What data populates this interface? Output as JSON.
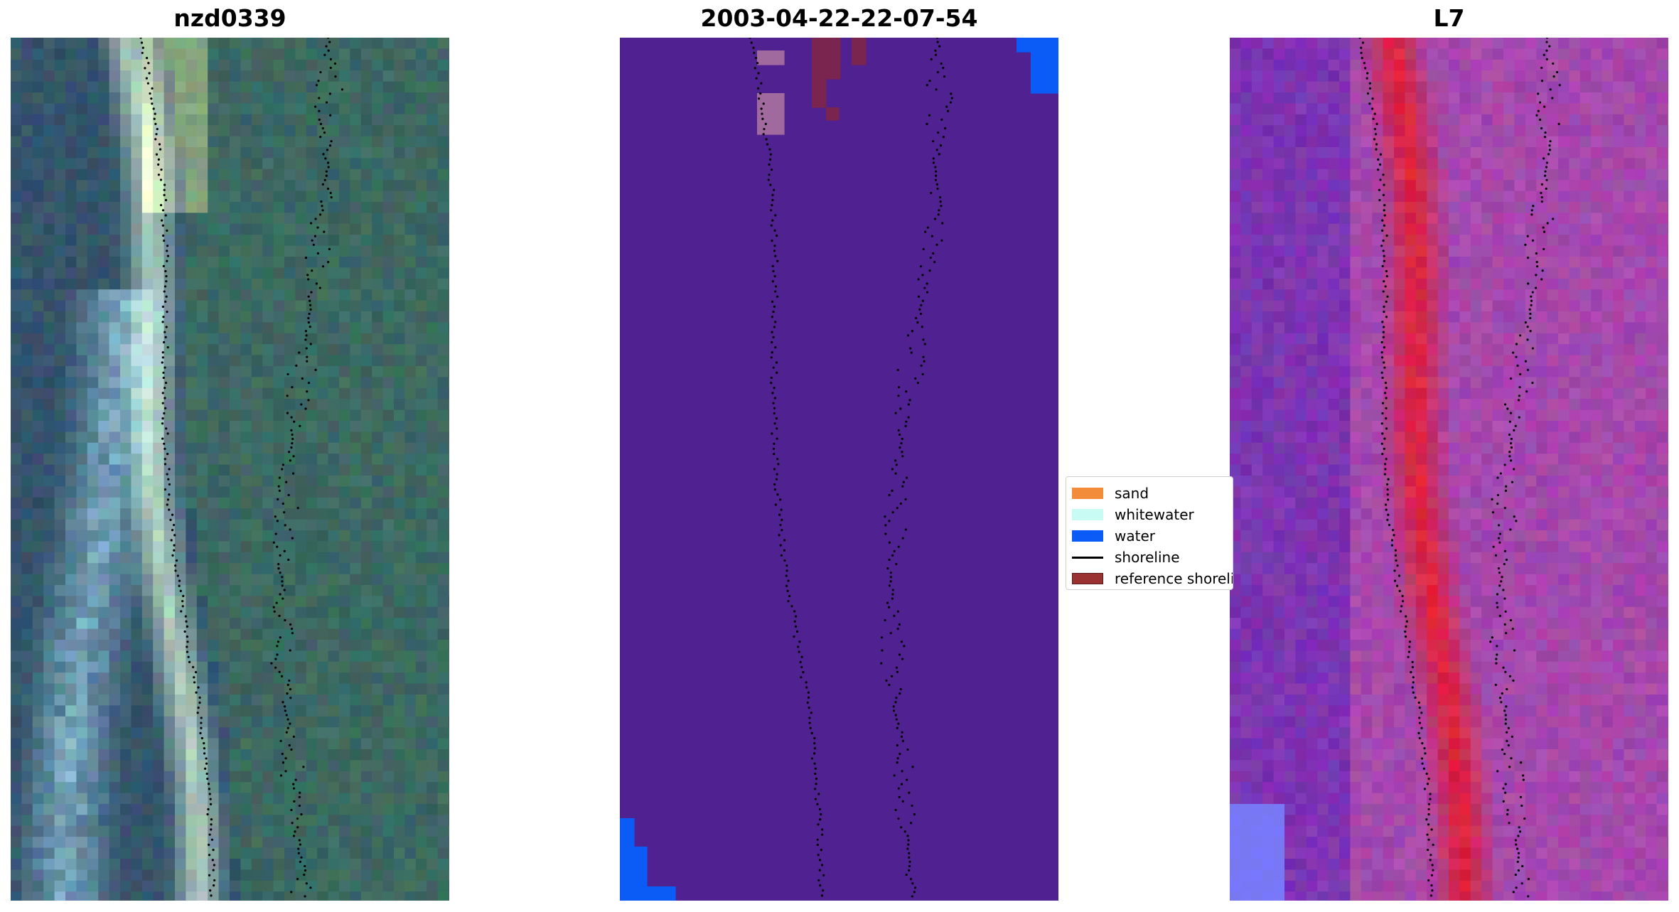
{
  "panels": [
    {
      "title": "nzd0339",
      "kind": "rgb"
    },
    {
      "title": "2003-04-22-22-07-54",
      "kind": "classification"
    },
    {
      "title": "L7",
      "kind": "index"
    }
  ],
  "legend": {
    "items": [
      {
        "label": "sand",
        "type": "patch",
        "color": "#f28b3a"
      },
      {
        "label": "whitewater",
        "type": "patch",
        "color": "#c8fbf3"
      },
      {
        "label": "water",
        "type": "patch",
        "color": "#0b5cf7"
      },
      {
        "label": "shoreline",
        "type": "line",
        "color": "#000000"
      },
      {
        "label": "reference shoreline",
        "type": "patch",
        "color": "#9a3232"
      }
    ]
  },
  "colors": {
    "classification_background": "#502191",
    "water": "#0b5cf7",
    "reference_patch": "#7a2450",
    "whitewater_patch": "#a06a9e",
    "rgb_base": "#2f4c63",
    "index_base": "#9a3fa0",
    "index_high": "#c2103c",
    "index_low": "#6a1aa8"
  }
}
